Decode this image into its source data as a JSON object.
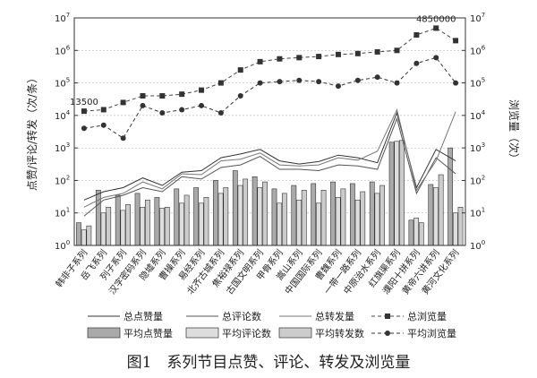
{
  "chart_data": {
    "type": "bar",
    "y_scale": "log",
    "ylim_left": [
      1,
      10000000
    ],
    "ylim_right": [
      1,
      10000000
    ],
    "ylabel_left": "点赞/评论/转发（次/条）",
    "ylabel_right": "浏览量（次）",
    "caption": "图1　系列节目点赞、评论、转发及浏览量",
    "categories": [
      "韩非子系列",
      "岳飞系列",
      "列子系列",
      "汉字密码系列",
      "隐墟系列",
      "曹操系列",
      "易经系列",
      "北齐古城系列",
      "焦裕禄系列",
      "古国文明系列",
      "甲骨系列",
      "嵩山系列",
      "中国国际系列",
      "曹魏系列",
      "一带一路系列",
      "中原治水系列",
      "红旗渠系列",
      "濮阳十拼系列",
      "黄帝六讲系列",
      "黄河文化系列"
    ],
    "series": [
      {
        "name": "总点赞量",
        "kind": "line",
        "style": "solid",
        "color": "#333333",
        "values": [
          25,
          45,
          60,
          120,
          70,
          180,
          200,
          500,
          650,
          900,
          400,
          320,
          380,
          600,
          500,
          350,
          12000,
          60,
          900,
          400
        ]
      },
      {
        "name": "总评论数",
        "kind": "line",
        "style": "solid",
        "color": "#555555",
        "values": [
          8,
          25,
          35,
          60,
          45,
          130,
          110,
          250,
          300,
          550,
          220,
          220,
          200,
          300,
          280,
          220,
          8000,
          40,
          500,
          160
        ]
      },
      {
        "name": "总转发量",
        "kind": "line",
        "style": "solid",
        "color": "#777777",
        "values": [
          15,
          30,
          40,
          90,
          55,
          160,
          150,
          400,
          450,
          700,
          300,
          280,
          300,
          500,
          420,
          800,
          15000,
          50,
          400,
          13000
        ]
      },
      {
        "name": "总浏览量",
        "kind": "line",
        "style": "dashed-square",
        "color": "#444444",
        "values": [
          13500,
          15000,
          25000,
          40000,
          40000,
          45000,
          60000,
          100000,
          250000,
          450000,
          550000,
          600000,
          650000,
          750000,
          800000,
          900000,
          1000000,
          3000000,
          4850000,
          2000000
        ]
      },
      {
        "name": "平均点赞量",
        "kind": "bar",
        "color": "#aaaaaa",
        "values": [
          5,
          50,
          35,
          40,
          30,
          55,
          60,
          100,
          200,
          130,
          55,
          70,
          80,
          90,
          80,
          90,
          1500,
          6,
          75,
          1000
        ]
      },
      {
        "name": "平均评论数",
        "kind": "bar",
        "color": "#dddddd",
        "values": [
          3,
          10,
          12,
          15,
          14,
          20,
          20,
          40,
          70,
          60,
          20,
          25,
          20,
          30,
          25,
          40,
          1600,
          7,
          60,
          10
        ]
      },
      {
        "name": "平均转发数",
        "kind": "bar",
        "color": "#cccccc",
        "values": [
          4,
          15,
          18,
          25,
          15,
          35,
          30,
          60,
          110,
          90,
          40,
          50,
          50,
          55,
          45,
          70,
          1700,
          5,
          150,
          15
        ]
      },
      {
        "name": "平均浏览量",
        "kind": "line",
        "style": "dashed-circle",
        "color": "#333333",
        "values": [
          4000,
          5000,
          2000,
          20000,
          12000,
          15000,
          20000,
          12000,
          40000,
          100000,
          110000,
          120000,
          110000,
          80000,
          120000,
          150000,
          100000,
          400000,
          600000,
          100000
        ]
      }
    ],
    "annotations": [
      {
        "text": "13500",
        "category": "韩非子系列",
        "series": "总浏览量"
      },
      {
        "text": "4850000",
        "category": "黄帝六讲系列",
        "series": "总浏览量"
      }
    ],
    "y_ticks": [
      "10^0",
      "10^1",
      "10^2",
      "10^3",
      "10^4",
      "10^5",
      "10^6",
      "10^7"
    ],
    "grid": "horizontal dashed at decades"
  }
}
